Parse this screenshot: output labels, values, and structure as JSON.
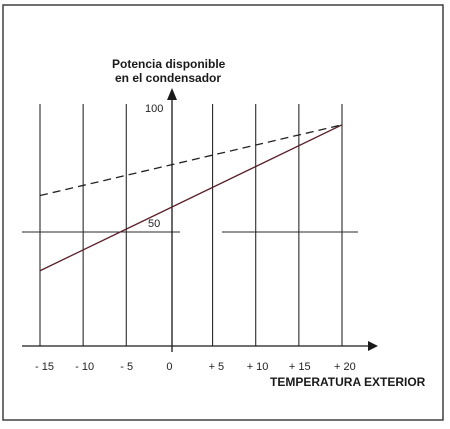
{
  "chart_data": {
    "type": "line",
    "title_lines": [
      "Potencia disponible",
      "en el condensador"
    ],
    "xlabel": "TEMPERATURA EXTERIOR",
    "x_tick_labels": [
      "- 15",
      "- 10",
      "- 5",
      "0",
      "+ 5",
      "+ 10",
      "+ 15",
      "+ 20"
    ],
    "x": [
      -15,
      -10,
      -5,
      0,
      5,
      10,
      15,
      20
    ],
    "xlim": [
      -15,
      20
    ],
    "y_tick_labels": [
      "100",
      "50"
    ],
    "y_ticks": [
      100,
      50
    ],
    "ylim": [
      0,
      100
    ],
    "grid": true,
    "series": [
      {
        "style": "solid",
        "color": "#5a1f2a",
        "x": [
          -15,
          20
        ],
        "y": [
          33,
          97
        ]
      },
      {
        "style": "dashed",
        "color": "#222222",
        "x": [
          -15,
          20
        ],
        "y": [
          66,
          97
        ]
      }
    ]
  }
}
